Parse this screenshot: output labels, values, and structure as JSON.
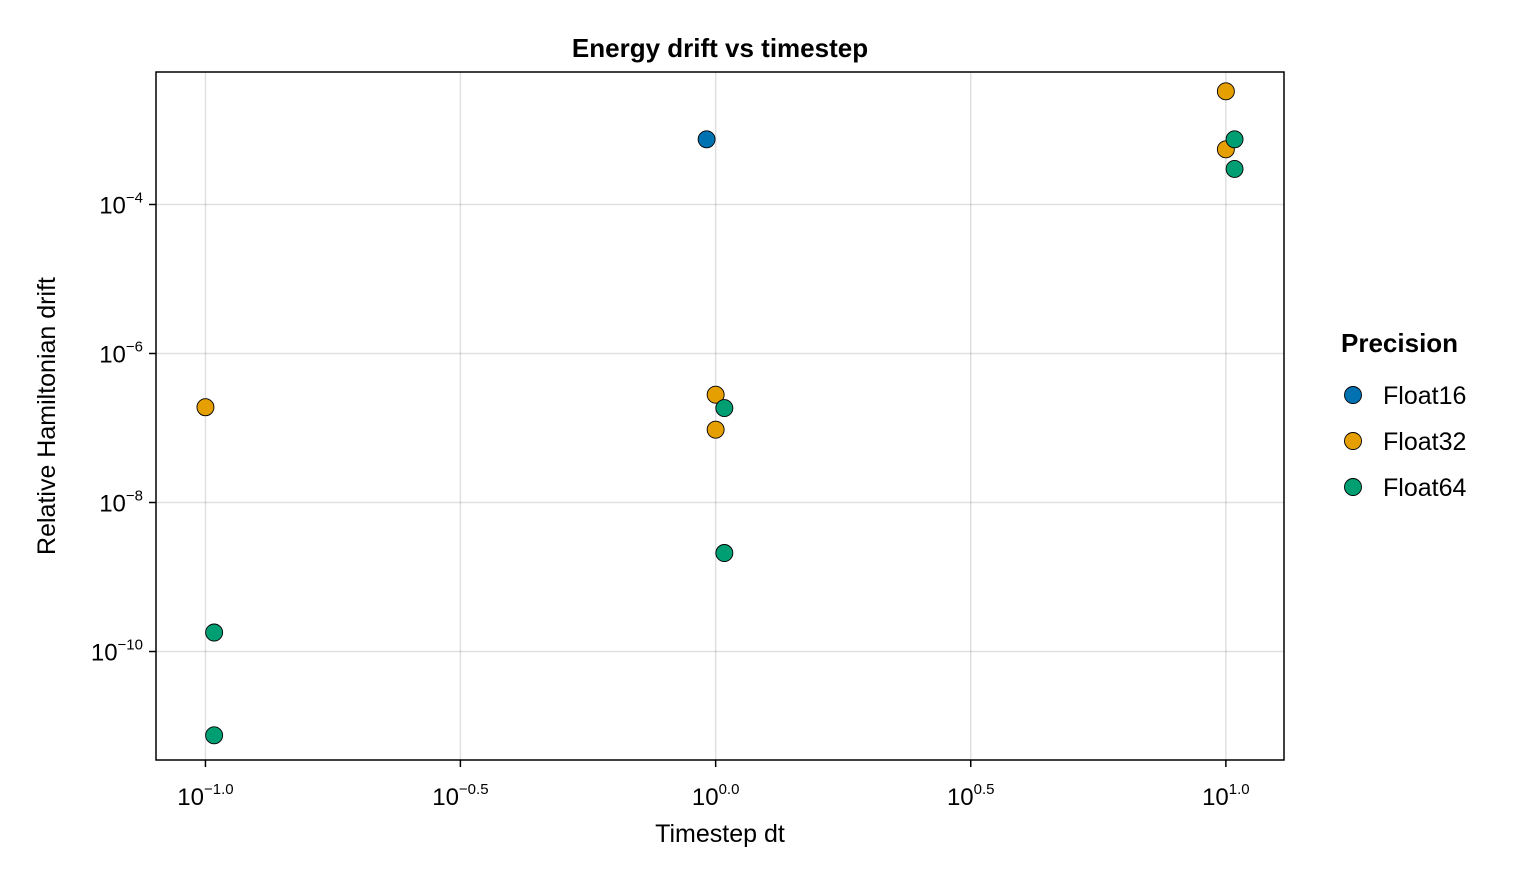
{
  "chart_data": {
    "type": "scatter",
    "title": "Energy drift vs timestep",
    "xlabel": "Timestep dt",
    "ylabel": "Relative Hamiltonian drift",
    "x_scale": "log10",
    "y_scale": "log10",
    "xlim": [
      0.08,
      13.0
    ],
    "ylim": [
      3.5e-12,
      0.006
    ],
    "x_ticks": [
      {
        "value": 0.1,
        "base": "10",
        "exp": "−1.0"
      },
      {
        "value": 0.316,
        "base": "10",
        "exp": "−0.5"
      },
      {
        "value": 1,
        "base": "10",
        "exp": "0.0"
      },
      {
        "value": 3.162,
        "base": "10",
        "exp": "0.5"
      },
      {
        "value": 10,
        "base": "10",
        "exp": "1.0"
      }
    ],
    "y_ticks": [
      {
        "value": 0.0001,
        "base": "10",
        "exp": "−4"
      },
      {
        "value": 1e-06,
        "base": "10",
        "exp": "−6"
      },
      {
        "value": 1e-08,
        "base": "10",
        "exp": "−8"
      },
      {
        "value": 1e-10,
        "base": "10",
        "exp": "−10"
      }
    ],
    "grid": true,
    "legend": {
      "title": "Precision",
      "placement": "right"
    },
    "series": [
      {
        "name": "Float16",
        "color": "#0072b2",
        "points": [
          {
            "x": 0.96,
            "y": 0.00075
          }
        ]
      },
      {
        "name": "Float32",
        "color": "#e69f00",
        "points": [
          {
            "x": 0.1,
            "y": 1.9e-07
          },
          {
            "x": 1.0,
            "y": 2.8e-07
          },
          {
            "x": 1.0,
            "y": 9.5e-08
          },
          {
            "x": 10.0,
            "y": 0.0033
          },
          {
            "x": 10.0,
            "y": 0.00055
          }
        ]
      },
      {
        "name": "Float64",
        "color": "#009e73",
        "points": [
          {
            "x": 0.104,
            "y": 1.8e-10
          },
          {
            "x": 0.104,
            "y": 7.5e-12
          },
          {
            "x": 1.04,
            "y": 1.85e-07
          },
          {
            "x": 1.04,
            "y": 2.1e-09
          },
          {
            "x": 10.4,
            "y": 0.00075
          },
          {
            "x": 10.4,
            "y": 0.0003
          }
        ]
      }
    ]
  }
}
